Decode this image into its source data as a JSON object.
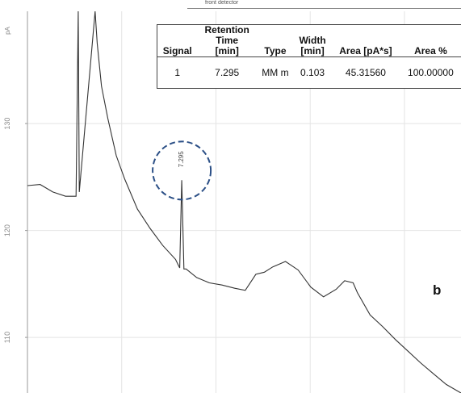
{
  "header": {
    "detector_label": "front detector"
  },
  "panel_label": "b",
  "chart_data": {
    "type": "line",
    "ylabel": "pA",
    "yticks": [
      110,
      120,
      130
    ],
    "ylim": [
      104.8,
      140.5
    ],
    "xlim": [
      0,
      20.5
    ],
    "grid": true,
    "peak_annotation": "7.295",
    "baseline": {
      "x": [
        0,
        0.6,
        1.2,
        1.8,
        2.3,
        2.4,
        2.45,
        3.2,
        3.3,
        3.5,
        3.8,
        4.2,
        4.6,
        5.2,
        5.8,
        6.4,
        7.0,
        7.1,
        7.2,
        7.295,
        7.4,
        7.5,
        8.0,
        8.6,
        9.2,
        9.8,
        10.3,
        10.8,
        11.2,
        11.6,
        12.2,
        12.8,
        13.4,
        14.0,
        14.6,
        15.0,
        15.4,
        15.6,
        16.2,
        16.8,
        17.4,
        18.0,
        18.6,
        19.2,
        19.8,
        20.5
      ],
      "y": [
        124.2,
        124.3,
        123.6,
        123.2,
        123.2,
        140.5,
        123.6,
        140.5,
        137.5,
        133.5,
        130.5,
        127.0,
        124.8,
        122.0,
        120.2,
        118.6,
        117.3,
        116.9,
        116.5,
        124.7,
        116.4,
        116.4,
        115.6,
        115.1,
        114.9,
        114.6,
        114.4,
        115.9,
        116.1,
        116.6,
        117.1,
        116.3,
        114.7,
        113.8,
        114.5,
        115.3,
        115.1,
        114.2,
        112.1,
        111.0,
        109.8,
        108.7,
        107.6,
        106.6,
        105.6,
        104.8
      ]
    },
    "table": {
      "columns": [
        [
          "Signal"
        ],
        [
          "Retention",
          "Time",
          "[min]"
        ],
        [
          "Type"
        ],
        [
          "Width",
          "[min]"
        ],
        [
          "Area [pA*s]"
        ],
        [
          "Area %"
        ]
      ],
      "rows": [
        [
          "1",
          "7.295",
          "MM m",
          "0.103",
          "45.31560",
          "100.00000"
        ]
      ]
    }
  }
}
